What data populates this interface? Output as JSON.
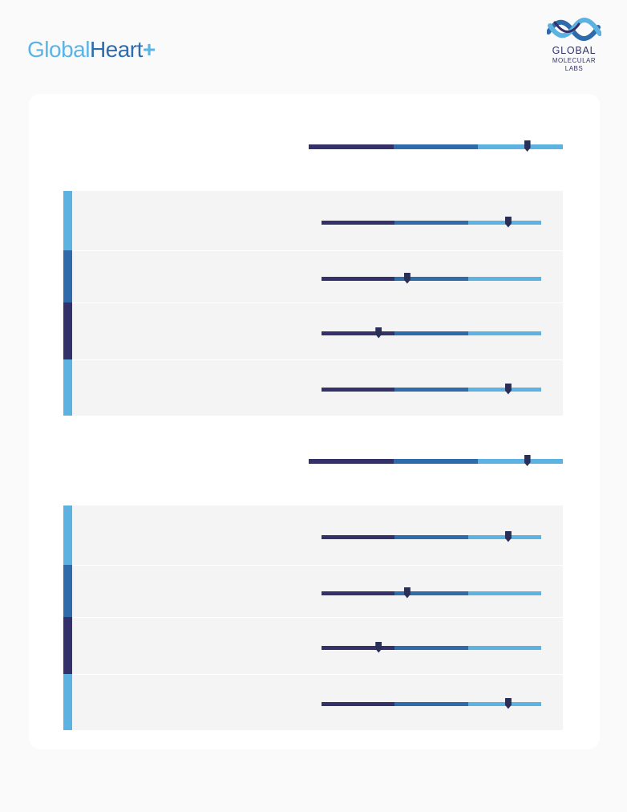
{
  "brand": {
    "part1": "Global",
    "part2": "Heart",
    "plus": "+"
  },
  "lab_logo": {
    "line1": "GLOBAL",
    "line2": "MOLECULAR",
    "line3": "LABS",
    "icon": "helix-logo-icon"
  },
  "colors": {
    "low": "#33306a",
    "mid": "#2f6bab",
    "high": "#5cb3e2",
    "marker": "#2a2f58"
  },
  "sections": [
    {
      "summary": {
        "level": 0.86
      },
      "rows": [
        {
          "accent": "high",
          "level": 0.85
        },
        {
          "accent": "mid",
          "level": 0.39
        },
        {
          "accent": "low",
          "level": 0.26
        },
        {
          "accent": "high",
          "level": 0.85
        }
      ]
    },
    {
      "summary": {
        "level": 0.86
      },
      "rows": [
        {
          "accent": "high",
          "level": 0.85
        },
        {
          "accent": "mid",
          "level": 0.39
        },
        {
          "accent": "low",
          "level": 0.26
        },
        {
          "accent": "high",
          "level": 0.85
        }
      ]
    }
  ]
}
